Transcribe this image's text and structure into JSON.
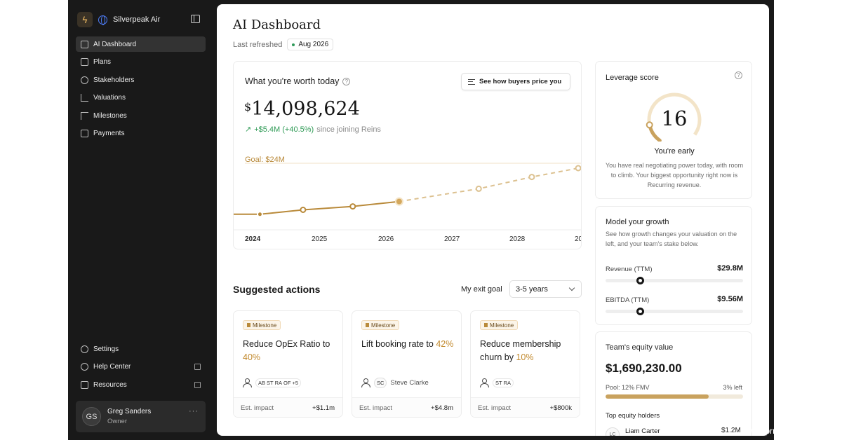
{
  "sidebar": {
    "company": "Silverpeak Air",
    "items": [
      {
        "label": "AI Dashboard",
        "icon": "dashboard-icon",
        "active": true
      },
      {
        "label": "Plans",
        "icon": "clipboard-icon"
      },
      {
        "label": "Stakeholders",
        "icon": "users-icon"
      },
      {
        "label": "Valuations",
        "icon": "chart-icon"
      },
      {
        "label": "Milestones",
        "icon": "flag-icon"
      },
      {
        "label": "Payments",
        "icon": "wallet-icon"
      }
    ],
    "bottom_items": [
      {
        "label": "Settings",
        "icon": "gear-icon"
      },
      {
        "label": "Help Center",
        "icon": "help-icon",
        "external": true
      },
      {
        "label": "Resources",
        "icon": "book-icon",
        "external": true
      }
    ],
    "user": {
      "initials": "GS",
      "name": "Greg Sanders",
      "role": "Owner"
    }
  },
  "header": {
    "title": "AI Dashboard",
    "refreshed_label": "Last refreshed",
    "refreshed_date": "Aug 2026"
  },
  "worth": {
    "label": "What you're worth today",
    "button": "See how buyers price you",
    "currency": "$",
    "value": "14,098,624",
    "delta": "+$5.4M (+40.5%)",
    "delta_suffix": "since joining Reins",
    "goal_label": "Goal: $24M"
  },
  "chart_data": {
    "type": "line",
    "x": [
      "2024",
      "2025",
      "2026",
      "2027",
      "2028",
      "20"
    ],
    "goal": 24,
    "series": [
      {
        "points": [
          [
            2023.6,
            13.6
          ],
          [
            2024.1,
            13.6
          ],
          [
            2024.75,
            14.5
          ],
          [
            2025.5,
            15.2
          ],
          [
            2026.2,
            16.2
          ]
        ]
      },
      {
        "points": [
          [
            2026.2,
            16.2
          ],
          [
            2027.4,
            18.8
          ],
          [
            2028.2,
            21.2
          ],
          [
            2028.9,
            23.0
          ],
          [
            2029.1,
            23.3
          ]
        ]
      }
    ]
  },
  "leverage": {
    "title": "Leverage score",
    "score": "16",
    "score_fraction": 0.16,
    "status": "You're early",
    "description": "You have real negotiating power today, with room to climb. Your biggest opportunity right now is Recurring revenue."
  },
  "growth": {
    "title": "Model your growth",
    "description": "See how growth changes your valuation on the left, and your team's stake below.",
    "sliders": [
      {
        "label": "Revenue (TTM)",
        "value": "$29.8M",
        "level": 0.25
      },
      {
        "label": "EBITDA (TTM)",
        "value": "$9.56M",
        "level": 0.25
      }
    ]
  },
  "equity": {
    "title": "Team's equity value",
    "value": "$1,690,230.00",
    "pool": "Pool: 12% FMV",
    "left": "3% left",
    "pool_used": 0.75,
    "top_label": "Top equity holders",
    "holders": [
      {
        "initials": "LC",
        "name": "Liam Carter",
        "value": "$1.2M"
      }
    ]
  },
  "suggested": {
    "title": "Suggested actions",
    "exit_label": "My exit goal",
    "exit_value": "3-5 years",
    "cards": [
      {
        "badge": "Milestone",
        "title": "Reduce OpEx Ratio to",
        "highlight": "40%",
        "people": [
          "AB",
          "ST",
          "RA",
          "OF",
          "+5"
        ],
        "impact_label": "Est. impact",
        "impact": "+$1.1m"
      },
      {
        "badge": "Milestone",
        "title": "Lift booking rate to",
        "highlight": "42%",
        "people": [
          "SC"
        ],
        "person_name": "Steve Clarke",
        "impact_label": "Est. impact",
        "impact": "+$4.8m"
      },
      {
        "badge": "Milestone",
        "title": "Reduce membership churn by",
        "highlight": "10%",
        "people": [
          "ST",
          "RA"
        ],
        "impact_label": "Est. impact",
        "impact": "+$800k"
      }
    ]
  },
  "watermark": "www.prnewswire.com"
}
